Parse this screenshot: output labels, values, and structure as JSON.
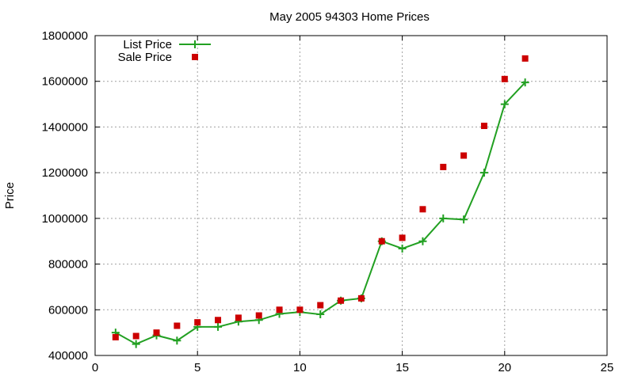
{
  "chart_data": {
    "type": "line",
    "title": "May 2005 94303 Home Prices",
    "xlabel": "",
    "ylabel": "Price",
    "xlim": [
      0,
      25
    ],
    "ylim": [
      400000,
      1800000
    ],
    "xticks": [
      0,
      5,
      10,
      15,
      20,
      25
    ],
    "yticks": [
      400000,
      600000,
      800000,
      1000000,
      1200000,
      1400000,
      1600000,
      1800000
    ],
    "grid": true,
    "legend_position": "top-left",
    "series": [
      {
        "name": "List Price",
        "style": "line-with-plus-markers",
        "color": "#22a022",
        "x": [
          1,
          2,
          3,
          4,
          5,
          6,
          7,
          8,
          9,
          10,
          11,
          12,
          13,
          14,
          15,
          16,
          17,
          18,
          19,
          20,
          21
        ],
        "y": [
          500000,
          450000,
          488000,
          465000,
          525000,
          525000,
          548000,
          555000,
          582000,
          590000,
          580000,
          640000,
          650000,
          900000,
          868000,
          900000,
          1000000,
          995000,
          1200000,
          1500000,
          1595000
        ]
      },
      {
        "name": "Sale Price",
        "style": "square-markers",
        "color": "#cc0000",
        "x": [
          1,
          2,
          3,
          4,
          5,
          6,
          7,
          8,
          9,
          10,
          11,
          12,
          13,
          14,
          15,
          16,
          17,
          18,
          19,
          20,
          21
        ],
        "y": [
          480000,
          485000,
          500000,
          530000,
          545000,
          555000,
          565000,
          575000,
          600000,
          600000,
          620000,
          640000,
          650000,
          900000,
          915000,
          1040000,
          1225000,
          1275000,
          1405000,
          1610000,
          1700000
        ]
      }
    ]
  }
}
